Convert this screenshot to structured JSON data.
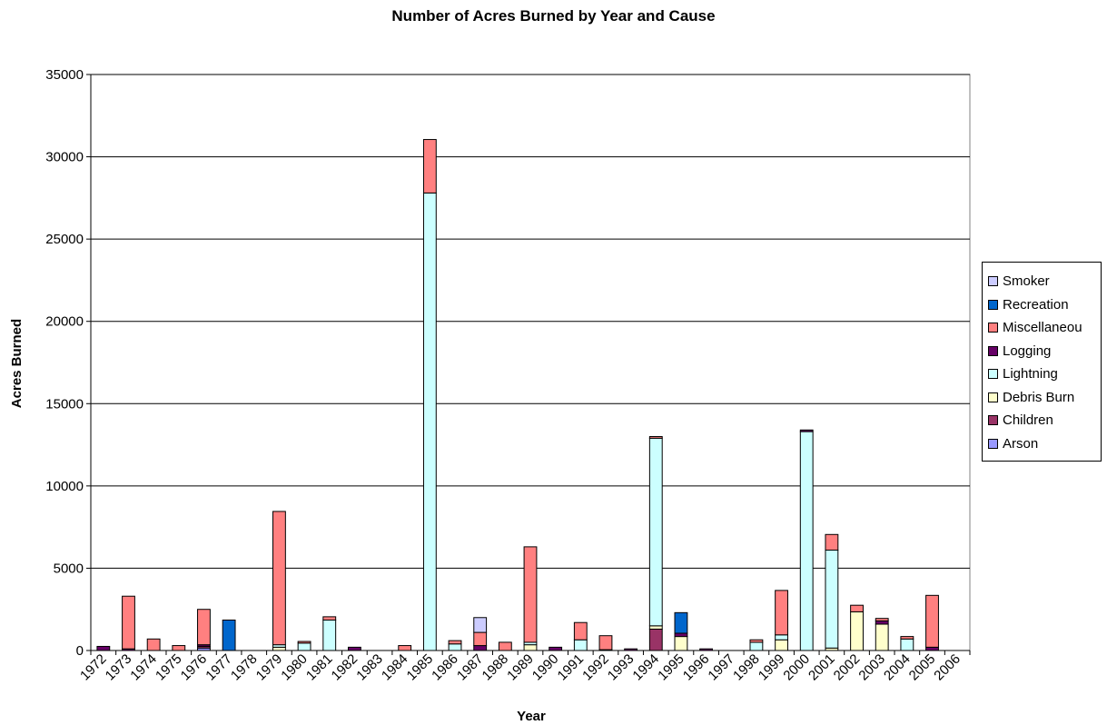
{
  "chart_data": {
    "type": "bar",
    "stacked": true,
    "title": "Number of Acres Burned by Year and Cause",
    "xlabel": "Year",
    "ylabel": "Acres Burned",
    "ylim": [
      0,
      35000
    ],
    "yticks": [
      0,
      5000,
      10000,
      15000,
      20000,
      25000,
      30000,
      35000
    ],
    "grid": true,
    "legend_position": "right",
    "categories": [
      "1972",
      "1973",
      "1974",
      "1975",
      "1976",
      "1977",
      "1978",
      "1979",
      "1980",
      "1981",
      "1982",
      "1983",
      "1984",
      "1985",
      "1986",
      "1987",
      "1988",
      "1989",
      "1990",
      "1991",
      "1992",
      "1993",
      "1994",
      "1995",
      "1996",
      "1997",
      "1998",
      "1999",
      "2000",
      "2001",
      "2002",
      "2003",
      "2004",
      "2005",
      "2006"
    ],
    "series": [
      {
        "name": "Arson",
        "color": "#9999ff",
        "values": [
          0,
          0,
          0,
          0,
          150,
          0,
          0,
          0,
          0,
          0,
          0,
          0,
          0,
          0,
          0,
          0,
          0,
          0,
          0,
          0,
          0,
          0,
          0,
          0,
          0,
          0,
          0,
          0,
          0,
          0,
          0,
          0,
          0,
          0,
          0
        ]
      },
      {
        "name": "Children",
        "color": "#993366",
        "values": [
          0,
          0,
          0,
          0,
          100,
          0,
          0,
          0,
          0,
          0,
          0,
          0,
          0,
          0,
          0,
          0,
          0,
          0,
          0,
          0,
          0,
          0,
          1300,
          0,
          0,
          0,
          0,
          0,
          0,
          0,
          0,
          0,
          0,
          0,
          0
        ]
      },
      {
        "name": "Debris Burn",
        "color": "#ffffcc",
        "values": [
          0,
          0,
          0,
          0,
          0,
          0,
          0,
          200,
          0,
          0,
          0,
          0,
          0,
          0,
          0,
          0,
          0,
          350,
          0,
          0,
          0,
          0,
          200,
          850,
          0,
          0,
          0,
          650,
          0,
          150,
          2350,
          1600,
          0,
          0,
          0
        ]
      },
      {
        "name": "Lightning",
        "color": "#ccffff",
        "values": [
          0,
          0,
          0,
          0,
          0,
          0,
          0,
          150,
          450,
          1850,
          0,
          0,
          0,
          27800,
          400,
          0,
          0,
          150,
          0,
          650,
          0,
          0,
          11400,
          0,
          0,
          0,
          500,
          300,
          13300,
          5950,
          0,
          0,
          700,
          0,
          0
        ]
      },
      {
        "name": "Logging",
        "color": "#660066",
        "values": [
          250,
          100,
          0,
          0,
          100,
          0,
          0,
          0,
          0,
          0,
          200,
          0,
          0,
          0,
          0,
          300,
          0,
          0,
          200,
          0,
          50,
          100,
          0,
          200,
          100,
          0,
          0,
          0,
          100,
          0,
          0,
          200,
          0,
          200,
          0
        ]
      },
      {
        "name": "Miscellaneou",
        "color": "#ff8080",
        "values": [
          0,
          3200,
          700,
          300,
          2150,
          0,
          0,
          8100,
          100,
          200,
          0,
          0,
          300,
          3250,
          200,
          800,
          500,
          5800,
          0,
          1050,
          850,
          0,
          100,
          0,
          0,
          0,
          150,
          2700,
          0,
          950,
          400,
          150,
          150,
          3150,
          0
        ]
      },
      {
        "name": "Recreation",
        "color": "#0066cc",
        "values": [
          0,
          0,
          0,
          0,
          0,
          1850,
          0,
          0,
          0,
          0,
          0,
          0,
          0,
          0,
          0,
          0,
          0,
          0,
          0,
          0,
          0,
          0,
          0,
          1250,
          0,
          0,
          0,
          0,
          0,
          0,
          0,
          0,
          0,
          0,
          0
        ]
      },
      {
        "name": "Smoker",
        "color": "#ccccff",
        "values": [
          0,
          0,
          0,
          0,
          0,
          0,
          0,
          0,
          0,
          0,
          0,
          0,
          0,
          0,
          0,
          900,
          0,
          0,
          0,
          0,
          0,
          0,
          0,
          0,
          0,
          0,
          0,
          0,
          0,
          0,
          0,
          0,
          0,
          0,
          0
        ]
      }
    ],
    "legend_order": [
      "Smoker",
      "Recreation",
      "Miscellaneou",
      "Logging",
      "Lightning",
      "Debris Burn",
      "Children",
      "Arson"
    ]
  }
}
